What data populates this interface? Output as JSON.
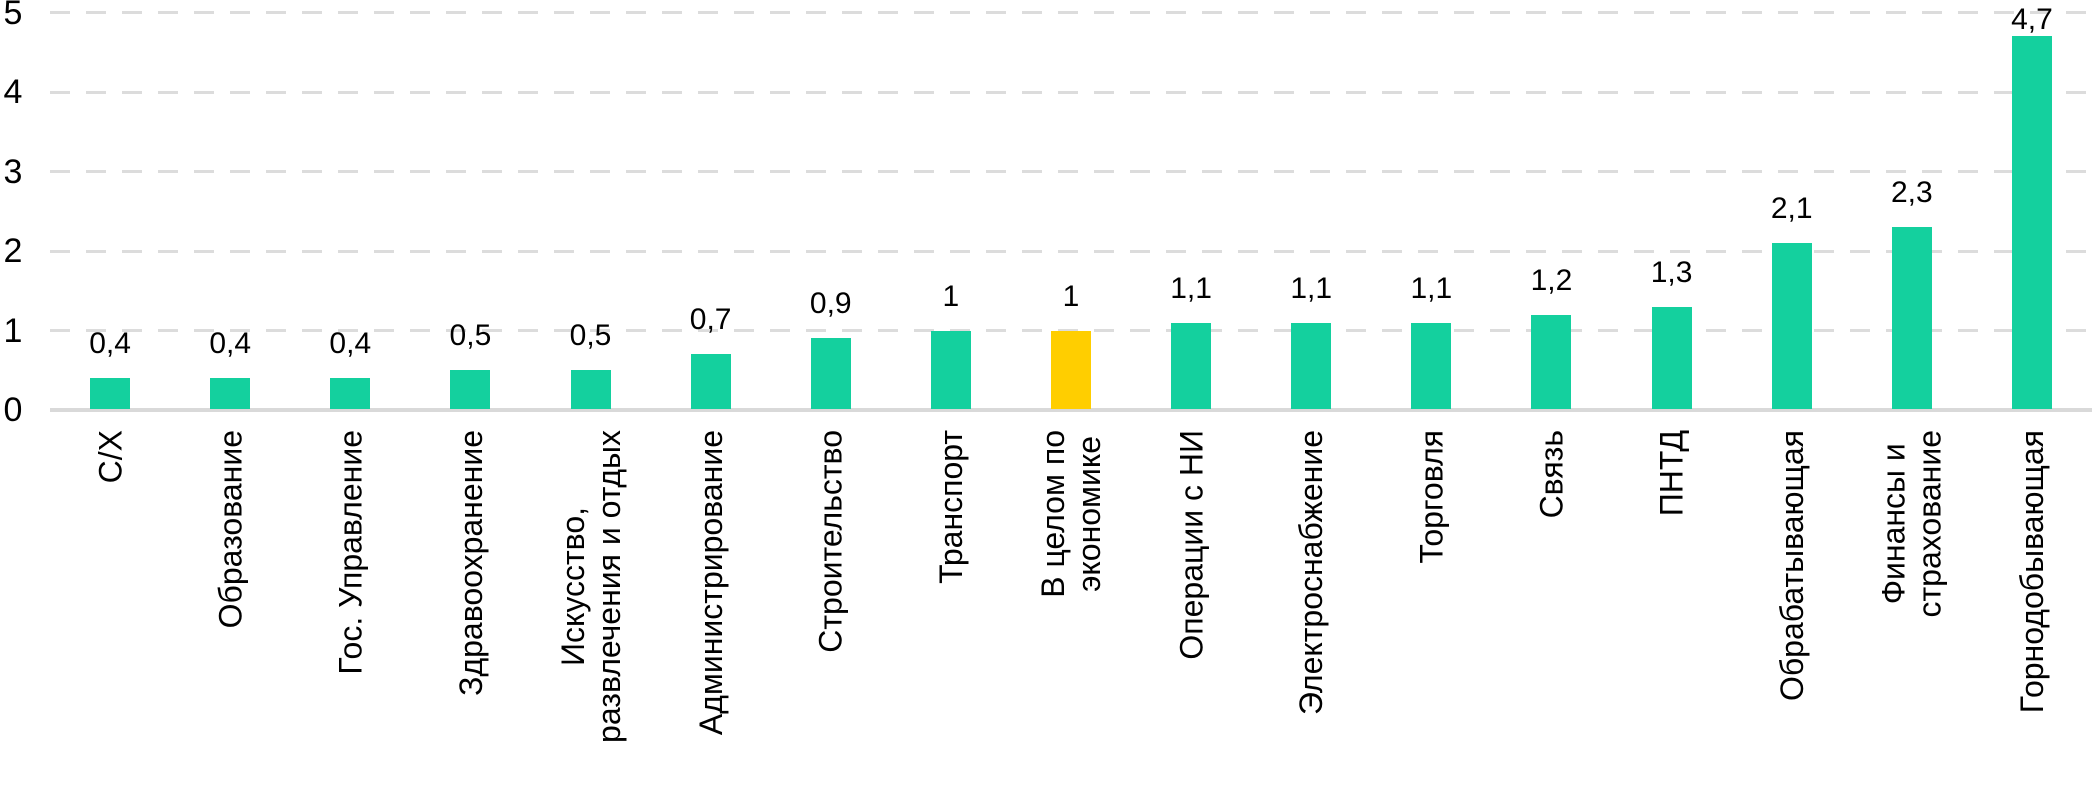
{
  "chart_data": {
    "type": "bar",
    "title": "",
    "xlabel": "",
    "ylabel": "",
    "categories": [
      "С/Х",
      "Образование",
      "Гос. Управление",
      "Здравоохранение",
      "Искусство,\nразвлечения и отдых",
      "Администрирование",
      "Строительство",
      "Транспорт",
      "В целом по\nэкономике",
      "Операции с НИ",
      "Электроснабжение",
      "Торговля",
      "Связь",
      "ПНТД",
      "Обрабатывающая",
      "Финансы и\nстрахование",
      "Горнодобывающая"
    ],
    "values": [
      0.4,
      0.4,
      0.4,
      0.5,
      0.5,
      0.7,
      0.9,
      1,
      1,
      1.1,
      1.1,
      1.1,
      1.2,
      1.3,
      2.1,
      2.3,
      4.7
    ],
    "value_labels": [
      "0,4",
      "0,4",
      "0,4",
      "0,5",
      "0,5",
      "0,7",
      "0,9",
      "1",
      "1",
      "1,1",
      "1,1",
      "1,1",
      "1,2",
      "1,3",
      "2,1",
      "2,3",
      "4,7"
    ],
    "highlight_index": 8,
    "highlight_category": "В целом по экономике",
    "y_ticks": [
      "0",
      "1",
      "2",
      "3",
      "4",
      "5"
    ],
    "ylim": [
      0,
      5
    ],
    "grid": "dashed-horizontal",
    "legend_position": "none",
    "colors": {
      "bar": "#14D09E",
      "highlight_bar": "#FFCE00",
      "gridline": "#DCDCDC",
      "axis_line": "#D9D9D9",
      "text": "#000000",
      "background": "#FFFFFF"
    }
  }
}
